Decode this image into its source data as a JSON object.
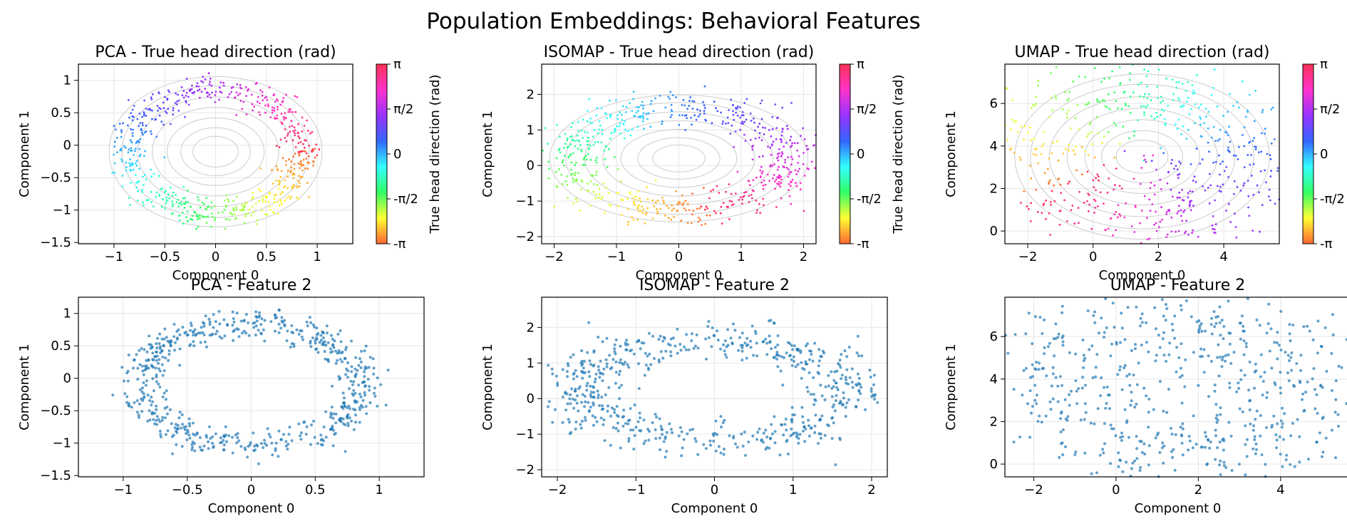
{
  "figure": {
    "title": "Population Embeddings: Behavioral Features"
  },
  "colorbar": {
    "label": "True head direction (rad)",
    "ticks": [
      "π",
      "π/2",
      "0",
      "-π/2",
      "-π"
    ],
    "colors": [
      "#ff3355",
      "#ff33cc",
      "#9933ff",
      "#3366ff",
      "#33ffff",
      "#33ff66",
      "#ffff33",
      "#ff6633"
    ]
  },
  "colors": {
    "scatter_blue": "#1f77b4",
    "grid": "#e6e6e6",
    "contour": "#cccccc"
  },
  "chart_data": [
    {
      "id": "pca-hd",
      "type": "scatter",
      "title": "PCA - True head direction (rad)",
      "xlabel": "Component 0",
      "ylabel": "Component 1",
      "xlim": [
        -1.35,
        1.35
      ],
      "ylim": [
        -1.52,
        1.25
      ],
      "xticks": [
        -1.0,
        -0.5,
        0.0,
        0.5,
        1.0
      ],
      "yticks": [
        -1.5,
        -1.0,
        -0.5,
        0.0,
        0.5,
        1.0
      ],
      "ring": {
        "cx": 0.0,
        "cy": -0.1,
        "rx": 0.85,
        "ry": 0.95,
        "n": 620,
        "jitter": 0.18
      },
      "colored": true,
      "contours": true
    },
    {
      "id": "isomap-hd",
      "type": "scatter",
      "title": "ISOMAP - True head direction (rad)",
      "xlabel": "Component 0",
      "ylabel": "Component 1",
      "xlim": [
        -2.2,
        2.2
      ],
      "ylim": [
        -2.2,
        2.85
      ],
      "xticks": [
        -2,
        -1,
        0,
        1,
        2
      ],
      "yticks": [
        -2,
        -1,
        0,
        1,
        2
      ],
      "ring": {
        "cx": 0.0,
        "cy": 0.2,
        "rx": 1.7,
        "ry": 1.45,
        "n": 620,
        "jitter": 0.28
      },
      "colored": true,
      "contours": true
    },
    {
      "id": "umap-hd",
      "type": "scatter",
      "title": "UMAP - True head direction (rad)",
      "xlabel": "Component 0",
      "ylabel": "Component 1",
      "xlim": [
        -2.7,
        5.7
      ],
      "ylim": [
        -0.6,
        7.85
      ],
      "xticks": [
        -2,
        0,
        2,
        4
      ],
      "yticks": [
        0,
        2,
        4,
        6
      ],
      "ring": {
        "cx": 1.5,
        "cy": 3.5,
        "rx": 3.2,
        "ry": 3.2,
        "n": 620,
        "jitter": 0.6
      },
      "colored": true,
      "contours": true
    },
    {
      "id": "pca-f2",
      "type": "scatter",
      "title": "PCA - Feature 2",
      "xlabel": "Component 0",
      "ylabel": "Component 1",
      "xlim": [
        -1.35,
        1.35
      ],
      "ylim": [
        -1.52,
        1.25
      ],
      "xticks": [
        -1.0,
        -0.5,
        0.0,
        0.5,
        1.0
      ],
      "yticks": [
        -1.5,
        -1.0,
        -0.5,
        0.0,
        0.5,
        1.0
      ],
      "ring": {
        "cx": 0.0,
        "cy": -0.1,
        "rx": 0.85,
        "ry": 0.95,
        "n": 620,
        "jitter": 0.18
      },
      "colored": false,
      "contours": false
    },
    {
      "id": "isomap-f2",
      "type": "scatter",
      "title": "ISOMAP - Feature 2",
      "xlabel": "Component 0",
      "ylabel": "Component 1",
      "xlim": [
        -2.2,
        2.2
      ],
      "ylim": [
        -2.2,
        2.85
      ],
      "xticks": [
        -2,
        -1,
        0,
        1,
        2
      ],
      "yticks": [
        -2,
        -1,
        0,
        1,
        2
      ],
      "ring": {
        "cx": 0.0,
        "cy": 0.2,
        "rx": 1.7,
        "ry": 1.45,
        "n": 620,
        "jitter": 0.28
      },
      "colored": false,
      "contours": false
    },
    {
      "id": "umap-f2",
      "type": "scatter",
      "title": "UMAP - Feature 2",
      "xlabel": "Component 0",
      "ylabel": "Component 1",
      "xlim": [
        -2.7,
        5.7
      ],
      "ylim": [
        -0.6,
        7.85
      ],
      "xticks": [
        -2,
        0,
        2,
        4
      ],
      "yticks": [
        0,
        2,
        4,
        6
      ],
      "ring": {
        "cx": 1.5,
        "cy": 3.5,
        "rx": 3.2,
        "ry": 3.2,
        "n": 620,
        "jitter": 0.6
      },
      "colored": false,
      "contours": false
    }
  ]
}
